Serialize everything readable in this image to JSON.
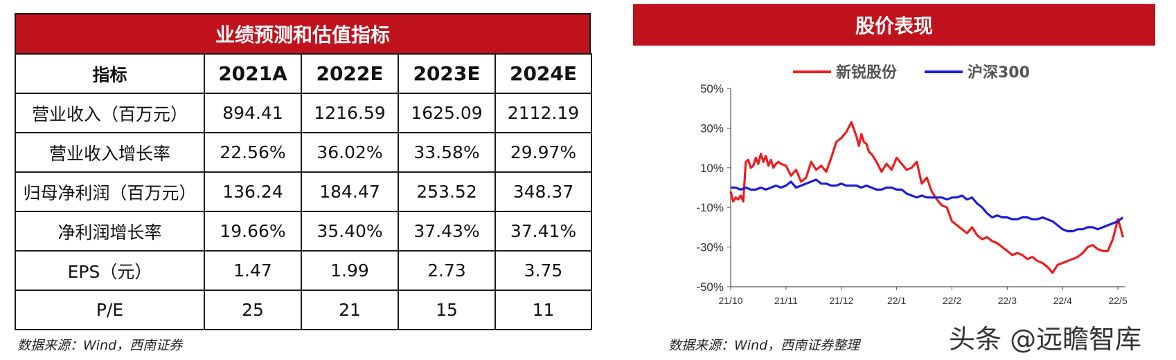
{
  "table": {
    "title": "业绩预测和估值指标",
    "headers": [
      "指标",
      "2021A",
      "2022E",
      "2023E",
      "2024E"
    ],
    "rows": [
      [
        "营业收入（百万元）",
        "894.41",
        "1216.59",
        "1625.09",
        "2112.19"
      ],
      [
        "营业收入增长率",
        "22.56%",
        "36.02%",
        "33.58%",
        "29.97%"
      ],
      [
        "归母净利润（百万元）",
        "136.24",
        "184.47",
        "253.52",
        "348.37"
      ],
      [
        "净利润增长率",
        "19.66%",
        "35.40%",
        "37.43%",
        "37.41%"
      ],
      [
        "EPS（元）",
        "1.47",
        "1.99",
        "2.73",
        "3.75"
      ],
      [
        "P/E",
        "25",
        "21",
        "15",
        "11"
      ]
    ],
    "source": "数据来源：Wind，西南证券"
  },
  "chart_title": "股价表现",
  "chart_source": "数据来源：Wind，西南证券整理",
  "watermark": "头条 @远瞻智库",
  "chart_data": {
    "type": "line",
    "xlabel": "",
    "ylabel": "",
    "ylim": [
      -50,
      50
    ],
    "yticks": [
      50,
      30,
      10,
      -10,
      -30,
      -50
    ],
    "ytick_labels": [
      "50%",
      "30%",
      "10%",
      "-10%",
      "-30%",
      "-50%"
    ],
    "x_tick_labels": [
      "21/10",
      "21/11",
      "21/12",
      "22/1",
      "22/2",
      "22/3",
      "22/4",
      "22/5"
    ],
    "x_tick_positions": [
      0,
      22,
      44,
      66,
      88,
      110,
      132,
      154
    ],
    "xlim": [
      0,
      157
    ],
    "grid": false,
    "legend_position": "top",
    "series": [
      {
        "name": "新锐股份",
        "color": "#ee1c1c",
        "x": [
          0,
          1,
          2,
          3,
          4,
          5,
          6,
          7,
          8,
          9,
          10,
          11,
          12,
          13,
          14,
          15,
          16,
          17,
          18,
          19,
          20,
          22,
          24,
          26,
          28,
          30,
          32,
          34,
          36,
          38,
          40,
          42,
          44,
          46,
          48,
          50,
          51,
          52,
          53,
          54,
          55,
          56,
          58,
          60,
          62,
          64,
          66,
          68,
          70,
          72,
          74,
          76,
          78,
          80,
          82,
          84,
          86,
          88,
          90,
          92,
          94,
          96,
          98,
          100,
          102,
          104,
          106,
          108,
          110,
          112,
          114,
          116,
          118,
          120,
          122,
          124,
          126,
          128,
          130,
          132,
          134,
          136,
          138,
          140,
          142,
          144,
          146,
          148,
          150,
          152,
          154,
          155,
          156
        ],
        "values": [
          -2,
          -7,
          -5,
          -6,
          -4,
          -7,
          13,
          14,
          10,
          11,
          15,
          12,
          17,
          13,
          16,
          11,
          14,
          10,
          12,
          13,
          12,
          11,
          6,
          9,
          3,
          5,
          13,
          9,
          11,
          8,
          15,
          23,
          25,
          28,
          33,
          26,
          21,
          27,
          23,
          22,
          18,
          17,
          13,
          8,
          12,
          9,
          15,
          12,
          9,
          10,
          13,
          2,
          5,
          -2,
          -6,
          -9,
          -10,
          -17,
          -19,
          -21,
          -23,
          -20,
          -24,
          -26,
          -25,
          -27,
          -28,
          -30,
          -32,
          -34,
          -33,
          -34,
          -36,
          -35,
          -37,
          -38,
          -40,
          -43,
          -39,
          -38,
          -37,
          -36,
          -35,
          -33,
          -30,
          -29,
          -31,
          -32,
          -32,
          -26,
          -16,
          -20,
          -25
        ]
      },
      {
        "name": "沪深300",
        "color": "#1c1cdd",
        "x": [
          0,
          2,
          4,
          6,
          8,
          10,
          12,
          14,
          16,
          18,
          20,
          22,
          24,
          26,
          28,
          30,
          32,
          34,
          36,
          38,
          40,
          42,
          44,
          46,
          48,
          50,
          52,
          54,
          56,
          58,
          60,
          62,
          64,
          66,
          68,
          70,
          72,
          74,
          76,
          78,
          80,
          82,
          84,
          86,
          88,
          90,
          92,
          94,
          96,
          98,
          100,
          102,
          104,
          106,
          108,
          110,
          112,
          114,
          116,
          118,
          120,
          122,
          124,
          126,
          128,
          130,
          132,
          134,
          136,
          138,
          140,
          142,
          144,
          146,
          148,
          150,
          152,
          154,
          156
        ],
        "values": [
          0,
          0,
          -1,
          0,
          -1,
          -1,
          0,
          -1,
          0,
          1,
          0,
          1,
          3,
          0,
          1,
          2,
          3,
          4,
          2,
          2,
          1,
          1,
          2,
          1,
          1,
          1,
          0,
          1,
          0,
          -1,
          -1,
          0,
          0,
          -1,
          -1,
          -3,
          -4,
          -5,
          -4,
          -5,
          -5,
          -5,
          -5,
          -6,
          -5,
          -5,
          -4,
          -6,
          -5,
          -8,
          -10,
          -13,
          -15,
          -14,
          -15,
          -15,
          -16,
          -16,
          -15,
          -15,
          -16,
          -16,
          -15,
          -16,
          -17,
          -19,
          -21,
          -22,
          -22,
          -21,
          -21,
          -20,
          -20,
          -21,
          -20,
          -19,
          -18,
          -17,
          -15
        ]
      }
    ]
  }
}
